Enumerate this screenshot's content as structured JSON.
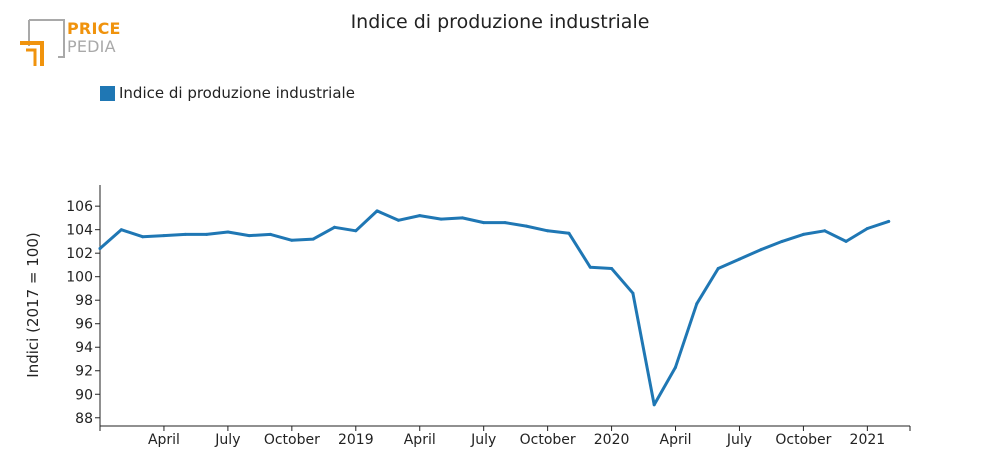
{
  "logo": {
    "line1": "PRICE",
    "line2": "PEDIA",
    "accent_color": "#f0930d",
    "secondary_color": "#a9a9a9"
  },
  "chart_data": {
    "type": "line",
    "title": "Indice di produzione industriale",
    "xlabel": "",
    "ylabel": "Indici (2017 = 100)",
    "ylim": [
      87.3,
      107.8
    ],
    "yticks": [
      88,
      90,
      92,
      94,
      96,
      98,
      100,
      102,
      104,
      106
    ],
    "xlim": [
      "2018-01",
      "2021-03"
    ],
    "xticks": [
      {
        "x": "2018-04",
        "label": "April"
      },
      {
        "x": "2018-07",
        "label": "July"
      },
      {
        "x": "2018-10",
        "label": "October"
      },
      {
        "x": "2019-01",
        "label": "2019"
      },
      {
        "x": "2019-04",
        "label": "April"
      },
      {
        "x": "2019-07",
        "label": "July"
      },
      {
        "x": "2019-10",
        "label": "October"
      },
      {
        "x": "2020-01",
        "label": "2020"
      },
      {
        "x": "2020-04",
        "label": "April"
      },
      {
        "x": "2020-07",
        "label": "July"
      },
      {
        "x": "2020-10",
        "label": "October"
      },
      {
        "x": "2021-01",
        "label": "2021"
      }
    ],
    "grid": false,
    "legend_position": "top-left",
    "series": [
      {
        "name": "Indice di produzione industriale",
        "color": "#1f77b4",
        "x": [
          "2018-01",
          "2018-02",
          "2018-03",
          "2018-04",
          "2018-05",
          "2018-06",
          "2018-07",
          "2018-08",
          "2018-09",
          "2018-10",
          "2018-11",
          "2018-12",
          "2019-01",
          "2019-02",
          "2019-03",
          "2019-04",
          "2019-05",
          "2019-06",
          "2019-07",
          "2019-08",
          "2019-09",
          "2019-10",
          "2019-11",
          "2019-12",
          "2020-01",
          "2020-02",
          "2020-03",
          "2020-04",
          "2020-05",
          "2020-06",
          "2020-07",
          "2020-08",
          "2020-09",
          "2020-10",
          "2020-11",
          "2020-12",
          "2021-01",
          "2021-02"
        ],
        "values": [
          102.4,
          104.0,
          103.4,
          103.5,
          103.6,
          103.6,
          103.8,
          103.5,
          103.6,
          103.1,
          103.2,
          104.2,
          103.9,
          105.6,
          104.8,
          105.2,
          104.9,
          105.0,
          104.6,
          104.6,
          104.3,
          103.9,
          103.7,
          100.8,
          100.7,
          98.6,
          89.1,
          92.3,
          97.7,
          100.7,
          101.5,
          102.3,
          103.0,
          103.6,
          103.9,
          103.0,
          104.1,
          104.7
        ]
      }
    ]
  }
}
